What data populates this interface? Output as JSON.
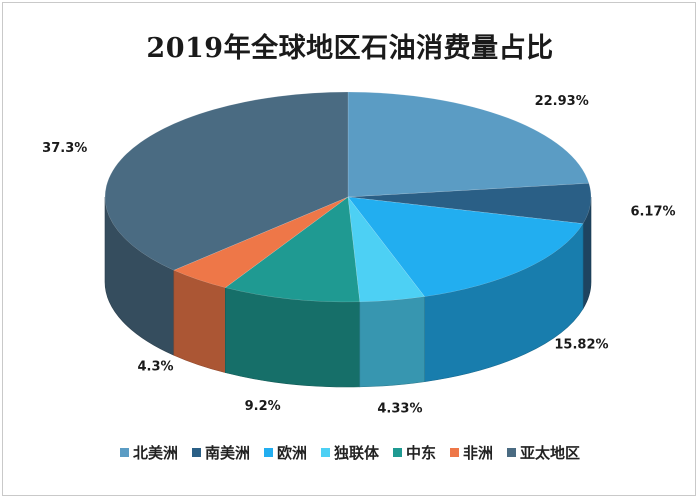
{
  "chart_data": {
    "type": "pie",
    "title": "2019年全球地区石油消费量占比",
    "slices": [
      {
        "label": "北美洲",
        "value": 22.93,
        "display": "22.93%",
        "color": "#5b9cc4"
      },
      {
        "label": "南美洲",
        "value": 6.17,
        "display": "6.17%",
        "color": "#2a5f86"
      },
      {
        "label": "欧洲",
        "value": 15.82,
        "display": "15.82%",
        "color": "#22aef0"
      },
      {
        "label": "独联体",
        "value": 4.33,
        "display": "4.33%",
        "color": "#4dd0f4"
      },
      {
        "label": "中东",
        "value": 9.2,
        "display": "9.2%",
        "color": "#1f9a92"
      },
      {
        "label": "非洲",
        "value": 4.3,
        "display": "4.3%",
        "color": "#ee7748"
      },
      {
        "label": "亚太地区",
        "value": 37.3,
        "display": "37.3%",
        "color": "#4a6b82"
      }
    ],
    "legend_position": "bottom"
  }
}
